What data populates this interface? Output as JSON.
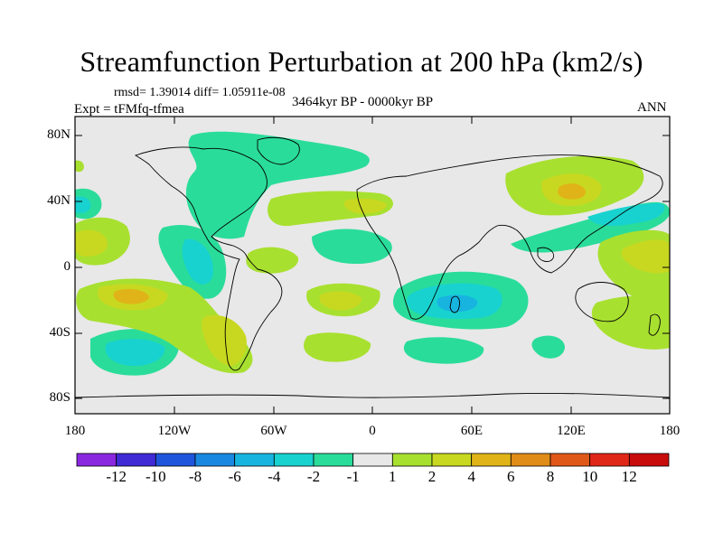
{
  "title": "Streamfunction Perturbation at 200 hPa (km2/s)",
  "stats_line": "rmsd= 1.39014 diff= 1.05911e-08",
  "experiment_label": "Expt = tFMfq-tfmea",
  "period_label": "3464kyr BP - 0000kyr BP",
  "season_label": "ANN",
  "lat_ticks": [
    "80N",
    "40N",
    "0",
    "40S",
    "80S"
  ],
  "lon_ticks": [
    "180",
    "120W",
    "60W",
    "0",
    "60E",
    "120E",
    "180"
  ],
  "colorbar": {
    "labels": [
      "-12",
      "-10",
      "-8",
      "-6",
      "-4",
      "-2",
      "-1",
      "1",
      "2",
      "4",
      "6",
      "8",
      "10",
      "12"
    ],
    "colors": [
      "#8a28e0",
      "#3f2ad6",
      "#1f55dc",
      "#1a88e0",
      "#18b4e0",
      "#18d2cf",
      "#2adc9a",
      "#e8e8e8",
      "#a8e030",
      "#c8d820",
      "#e0b418",
      "#e08c18",
      "#e05818",
      "#e02818",
      "#c80c0c"
    ]
  }
}
